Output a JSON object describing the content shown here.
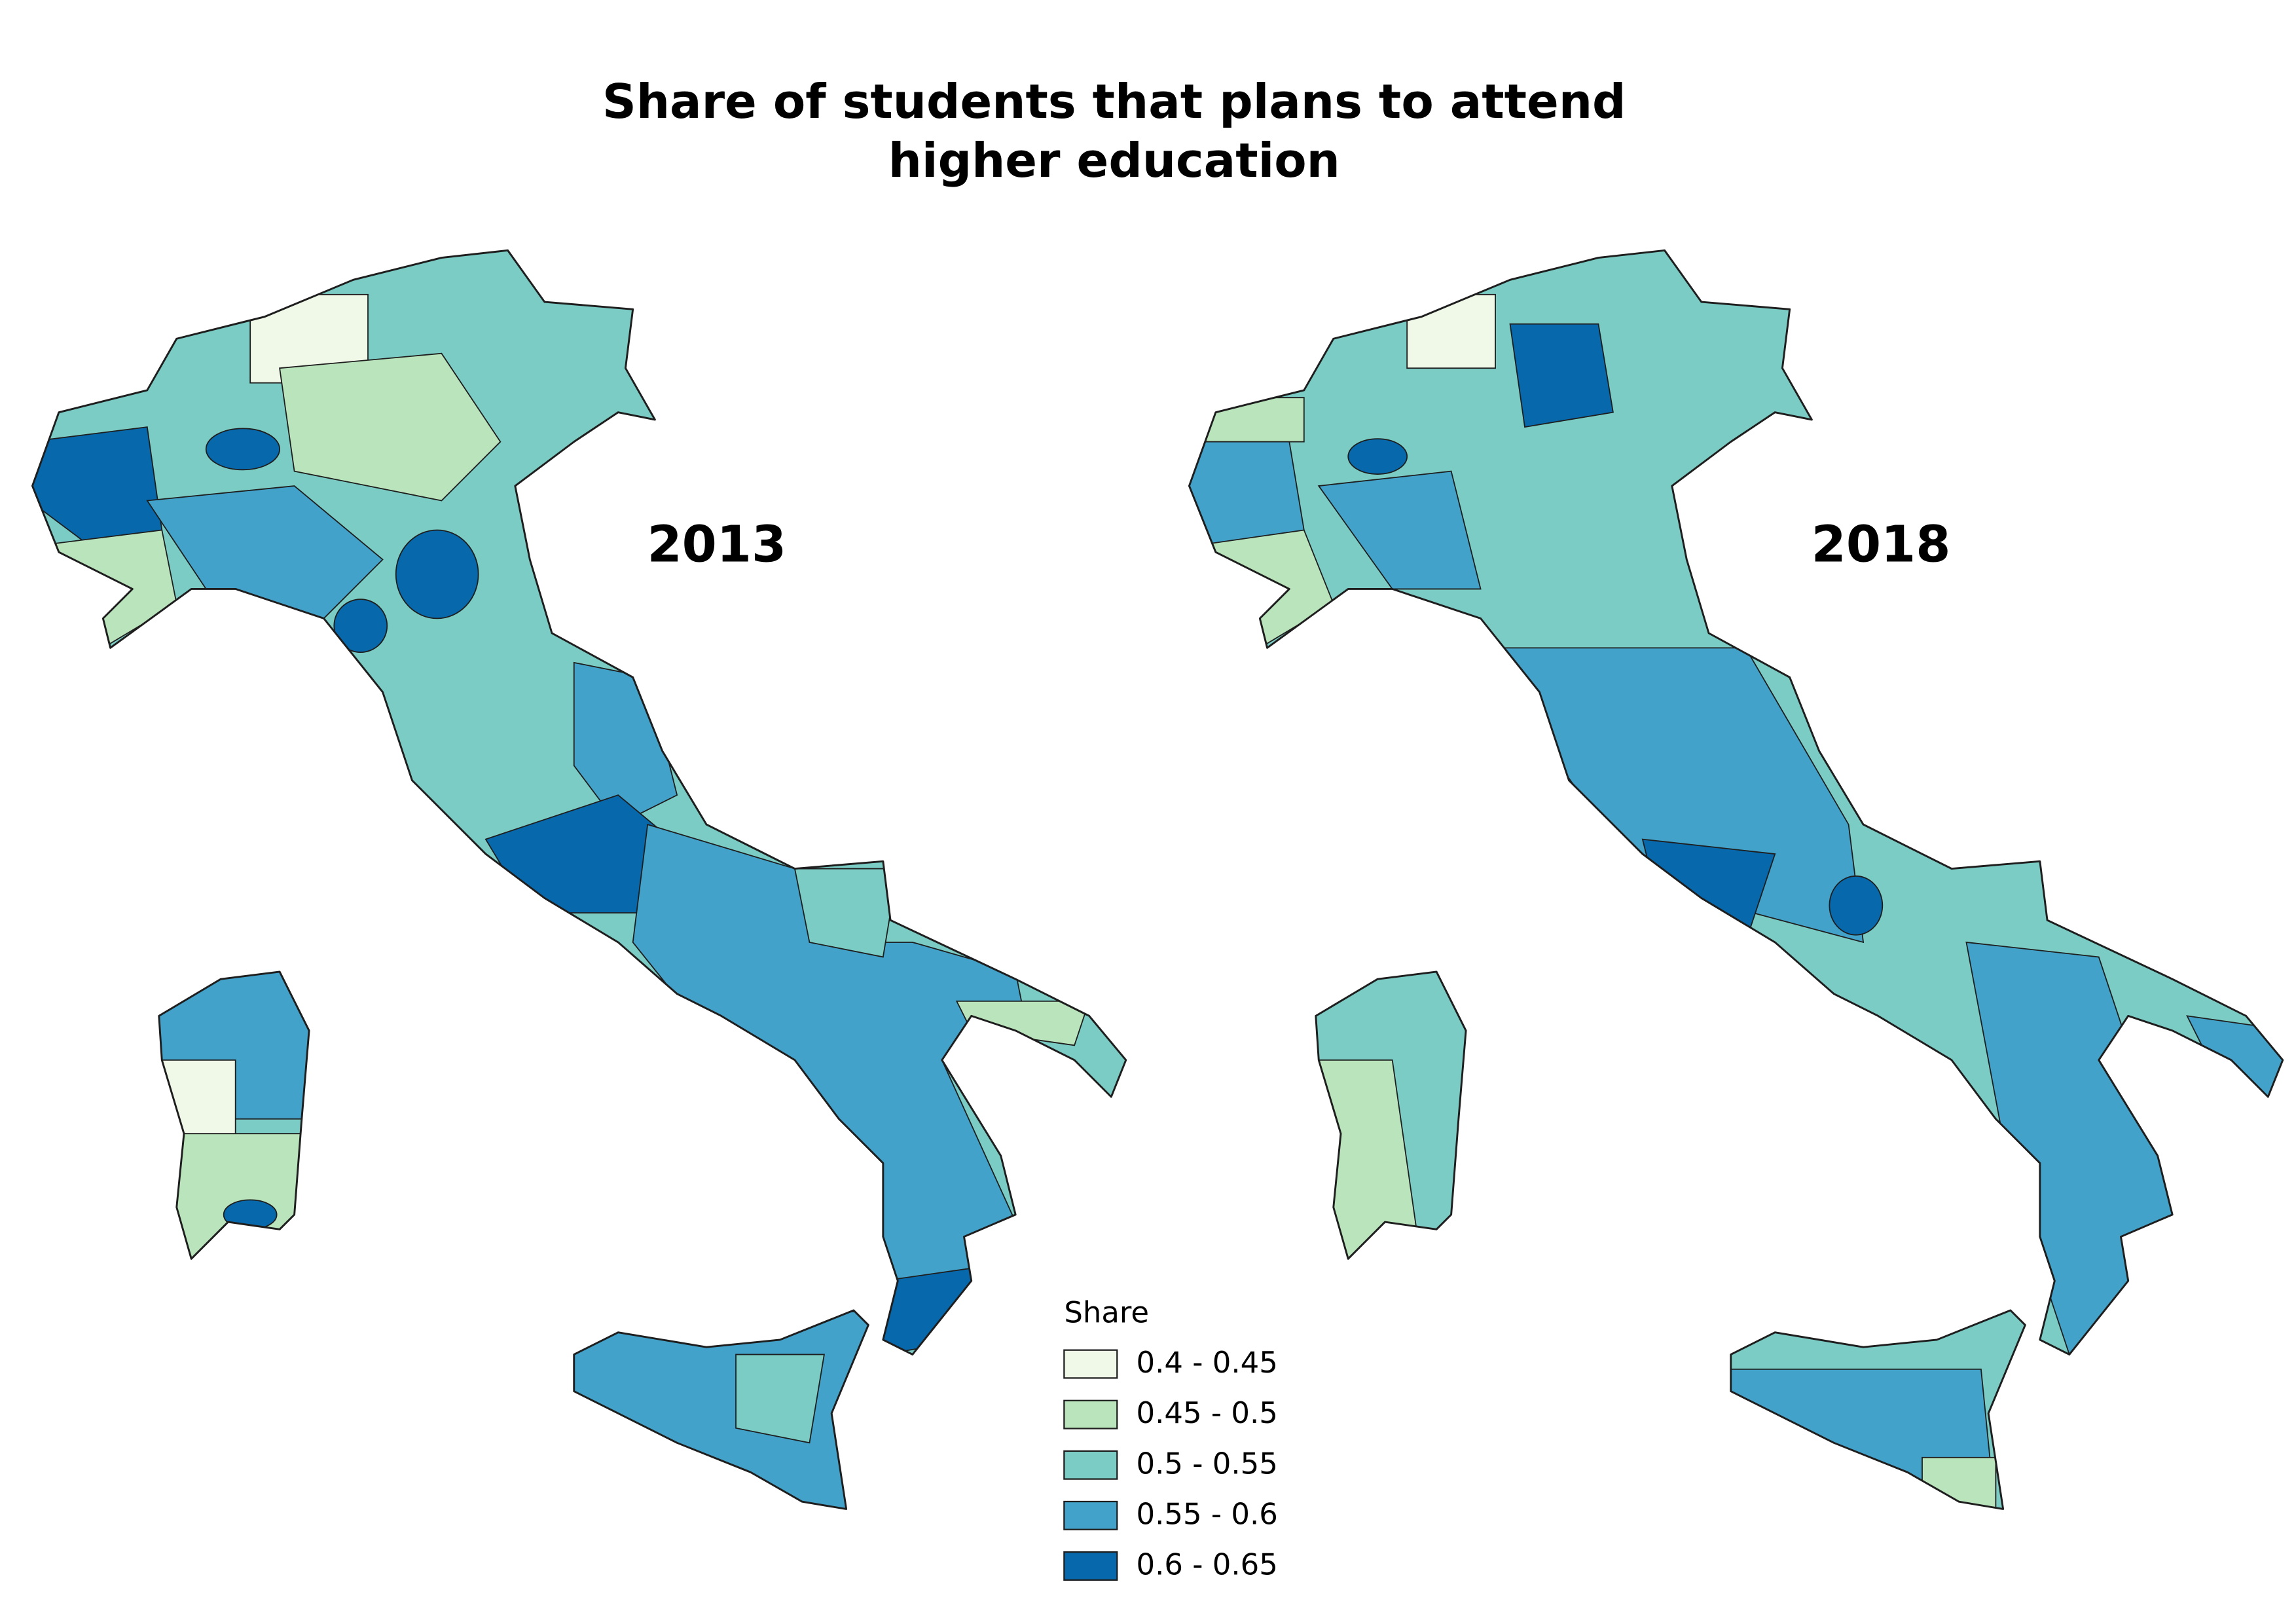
{
  "title_lines": [
    "Share of students that plans to attend",
    "higher education"
  ],
  "maps": [
    {
      "label": "2013"
    },
    {
      "label": "2018"
    }
  ],
  "legend": {
    "title": "Share",
    "items": [
      {
        "label": "0.4 - 0.45",
        "color": "#f0f9e8"
      },
      {
        "label": "0.45 - 0.5",
        "color": "#bae4bc"
      },
      {
        "label": "0.5 - 0.55",
        "color": "#7bccc4"
      },
      {
        "label": "0.55 - 0.6",
        "color": "#43a2ca"
      },
      {
        "label": "0.6 - 0.65",
        "color": "#0868ac"
      }
    ]
  }
}
